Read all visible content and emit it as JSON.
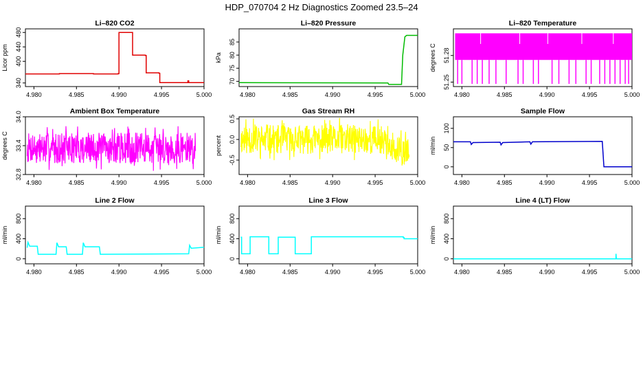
{
  "page_title": "HDP_070704  2 Hz Diagnostics Zoomed 23.5–24",
  "chart_data": [
    {
      "type": "line",
      "title": "Li–820 CO2",
      "ylabel": "Licor ppm",
      "color": "#e00000",
      "xlim": [
        4.979,
        5.0
      ],
      "xticks": [
        "4.980",
        "4.985",
        "4.990",
        "4.995",
        "5.000"
      ],
      "ylim": [
        330,
        490
      ],
      "yticks": [
        "340",
        "400",
        "440",
        "480"
      ],
      "style": "step",
      "series": [
        {
          "name": "CO2",
          "x": [
            4.979,
            4.983,
            4.987,
            4.9899,
            4.99,
            4.9915,
            4.9916,
            4.9931,
            4.9932,
            4.9947,
            4.9948,
            4.998,
            4.9981,
            4.9982,
            5.0
          ],
          "y": [
            365,
            366,
            365,
            366,
            480,
            480,
            417,
            416,
            368,
            367,
            341,
            341,
            346,
            341,
            341
          ]
        }
      ]
    },
    {
      "type": "line",
      "title": "Li–820 Pressure",
      "ylabel": "kPa",
      "color": "#00bb00",
      "xlim": [
        4.979,
        5.0
      ],
      "xticks": [
        "4.980",
        "4.985",
        "4.990",
        "4.995",
        "5.000"
      ],
      "ylim": [
        68,
        90
      ],
      "yticks": [
        "70",
        "75",
        "80",
        "85"
      ],
      "style": "line",
      "series": [
        {
          "name": "Pressure",
          "x": [
            4.979,
            4.9965,
            4.9966,
            4.9981,
            4.99825,
            4.9985,
            4.9987,
            5.0
          ],
          "y": [
            69.5,
            69.4,
            68.8,
            68.8,
            80.0,
            87.0,
            87.5,
            87.5
          ]
        }
      ]
    },
    {
      "type": "line",
      "title": "Li–820 Temperature",
      "ylabel": "degrees C",
      "color": "#ff00ff",
      "xlim": [
        4.979,
        5.0
      ],
      "xticks": [
        "4.980",
        "4.985",
        "4.990",
        "4.995",
        "5.000"
      ],
      "ylim": [
        51.245,
        51.31
      ],
      "yticks": [
        "51.25",
        "51.28"
      ],
      "style": "band",
      "band": {
        "low": 51.275,
        "high": 51.305,
        "dips": [
          4.9795,
          4.98,
          4.9812,
          4.9818,
          4.9824,
          4.9832,
          4.984,
          4.9852,
          4.9866,
          4.9872,
          4.9884,
          4.989,
          4.9906,
          4.9914,
          4.9926,
          4.9934,
          4.9946,
          4.9952,
          4.9962,
          4.9968,
          4.9974,
          4.998,
          4.9986,
          4.9992,
          4.9996
        ],
        "dip_to": 51.248
      },
      "series": [
        {
          "name": "Temperature",
          "x": [
            4.979,
            5.0
          ],
          "y": [
            51.29,
            51.29
          ]
        }
      ]
    },
    {
      "type": "line",
      "title": "Ambient Box Temperature",
      "ylabel": "degrees C",
      "color": "#ff00ff",
      "xlim": [
        4.979,
        5.0
      ],
      "xticks": [
        "4.980",
        "4.985",
        "4.990",
        "4.995",
        "5.000"
      ],
      "ylim": [
        32.8,
        34.0
      ],
      "yticks": [
        "32.8",
        "33.4",
        "34.0"
      ],
      "style": "noise",
      "noise": {
        "center": 33.35,
        "amp": 0.32,
        "seed": 7
      },
      "series": [
        {
          "name": "AmbientTemp",
          "x": [
            4.979,
            5.0
          ],
          "y": [
            33.35,
            33.35
          ]
        }
      ]
    },
    {
      "type": "line",
      "title": "Gas Stream RH",
      "ylabel": "percent",
      "color": "#ffff00",
      "xlim": [
        4.979,
        5.0
      ],
      "xticks": [
        "4.980",
        "4.985",
        "4.990",
        "4.995",
        "5.000"
      ],
      "ylim": [
        -0.85,
        0.55
      ],
      "yticks": [
        "-0.5",
        "0.0",
        "0.5"
      ],
      "style": "noise",
      "noise": {
        "center": 0.0,
        "amp": 0.35,
        "seed": 11,
        "shift_at": 4.9967,
        "shift_to": -0.3
      },
      "series": [
        {
          "name": "RH",
          "x": [
            4.979,
            5.0
          ],
          "y": [
            0.0,
            0.0
          ]
        }
      ]
    },
    {
      "type": "line",
      "title": "Sample Flow",
      "ylabel": "ml/min",
      "color": "#0000cc",
      "xlim": [
        4.979,
        5.0
      ],
      "xticks": [
        "4.980",
        "4.985",
        "4.990",
        "4.995",
        "5.000"
      ],
      "ylim": [
        -20,
        130
      ],
      "yticks": [
        "0",
        "50",
        "100"
      ],
      "style": "line",
      "series": [
        {
          "name": "SampleFlow",
          "x": [
            4.979,
            4.981,
            4.9811,
            4.9813,
            4.9845,
            4.9846,
            4.9848,
            4.988,
            4.9881,
            4.9883,
            4.9965,
            4.9967,
            5.0
          ],
          "y": [
            65,
            65,
            58,
            63,
            64,
            57,
            63,
            65,
            59,
            65,
            66,
            0,
            0
          ]
        }
      ]
    },
    {
      "type": "line",
      "title": "Line 2 Flow",
      "ylabel": "ml/min",
      "color": "#00ffff",
      "xlim": [
        4.979,
        5.0
      ],
      "xticks": [
        "4.980",
        "4.985",
        "4.990",
        "4.995",
        "5.000"
      ],
      "ylim": [
        -100,
        1050
      ],
      "yticks": [
        "0",
        "400",
        "800"
      ],
      "style": "line",
      "series": [
        {
          "name": "Line2Flow",
          "x": [
            4.9792,
            4.9793,
            4.9795,
            4.9804,
            4.9805,
            4.9826,
            4.9827,
            4.9829,
            4.9838,
            4.9839,
            4.9857,
            4.9858,
            4.986,
            4.9877,
            4.9878,
            4.9982,
            4.9983,
            4.9985,
            5.0
          ],
          "y": [
            220,
            330,
            250,
            250,
            90,
            90,
            320,
            240,
            240,
            90,
            90,
            320,
            240,
            240,
            90,
            100,
            270,
            210,
            230
          ]
        }
      ]
    },
    {
      "type": "line",
      "title": "Line 3 Flow",
      "ylabel": "ml/min",
      "color": "#00ffff",
      "xlim": [
        4.979,
        5.0
      ],
      "xticks": [
        "4.980",
        "4.985",
        "4.990",
        "4.995",
        "5.000"
      ],
      "ylim": [
        -100,
        1050
      ],
      "yticks": [
        "0",
        "400",
        "800"
      ],
      "style": "step",
      "series": [
        {
          "name": "Line3Flow",
          "x": [
            4.9792,
            4.9793,
            4.9802,
            4.9803,
            4.9824,
            4.9825,
            4.9835,
            4.9836,
            4.9855,
            4.9856,
            4.9874,
            4.9875,
            4.9983,
            4.9984,
            5.0
          ],
          "y": [
            430,
            100,
            100,
            440,
            440,
            100,
            100,
            430,
            430,
            100,
            100,
            440,
            425,
            400,
            400
          ]
        }
      ]
    },
    {
      "type": "line",
      "title": "Line 4 (LT) Flow",
      "ylabel": "ml/min",
      "color": "#00ffff",
      "xlim": [
        4.979,
        5.0
      ],
      "xticks": [
        "4.980",
        "4.985",
        "4.990",
        "4.995",
        "5.000"
      ],
      "ylim": [
        -100,
        1050
      ],
      "yticks": [
        "0",
        "400",
        "800"
      ],
      "style": "line",
      "series": [
        {
          "name": "Line4Flow",
          "x": [
            4.979,
            4.9981,
            4.99812,
            4.99815,
            4.9982,
            5.0
          ],
          "y": [
            0,
            0,
            100,
            20,
            0,
            0
          ]
        }
      ]
    }
  ]
}
